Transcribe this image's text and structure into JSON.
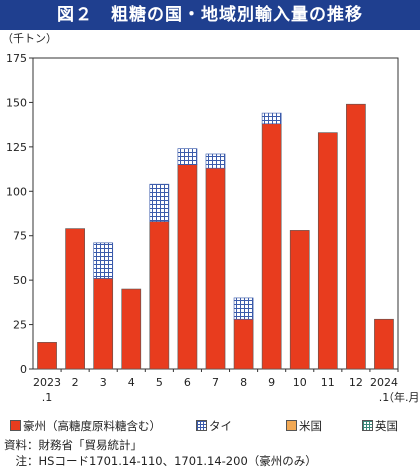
{
  "title": "図２　粗糖の国・地域別輸入量の推移",
  "chart_data": {
    "type": "bar",
    "stacked": true,
    "ylabel": "（千トン）",
    "xlabel": "（年.月）",
    "ylim": [
      0,
      175
    ],
    "yticks": [
      0,
      25,
      50,
      75,
      100,
      125,
      150,
      175
    ],
    "grid": false,
    "legend_position": "bottom",
    "categories": [
      "2023\n.1",
      "2",
      "3",
      "4",
      "5",
      "6",
      "7",
      "8",
      "9",
      "10",
      "11",
      "12",
      "2024\n.1"
    ],
    "series": [
      {
        "name": "豪州（高糖度原料糖含む）",
        "color": "#e83c1e",
        "pattern": "solid",
        "values": [
          15,
          79,
          51,
          45,
          83,
          115,
          113,
          28,
          138,
          78,
          133,
          149,
          28
        ]
      },
      {
        "name": "タイ",
        "color": "#3b5bab",
        "pattern": "grid",
        "values": [
          0,
          0,
          20,
          0,
          21,
          9,
          8,
          12,
          6,
          0,
          0,
          0,
          0
        ]
      },
      {
        "name": "米国",
        "color": "#f2a955",
        "pattern": "solid",
        "values": [
          0,
          0,
          0,
          0,
          0,
          0,
          0,
          0,
          0,
          0,
          0,
          0,
          0
        ]
      },
      {
        "name": "英国",
        "color": "#3a8a7a",
        "pattern": "grid",
        "values": [
          0,
          0,
          0,
          0,
          0,
          0,
          0,
          0,
          0,
          0,
          0,
          0,
          0
        ]
      }
    ]
  },
  "notes": {
    "source": "資料：財務省「貿易統計」",
    "note": "　注：HSコード1701.14-110、1701.14-200（豪州のみ）"
  }
}
